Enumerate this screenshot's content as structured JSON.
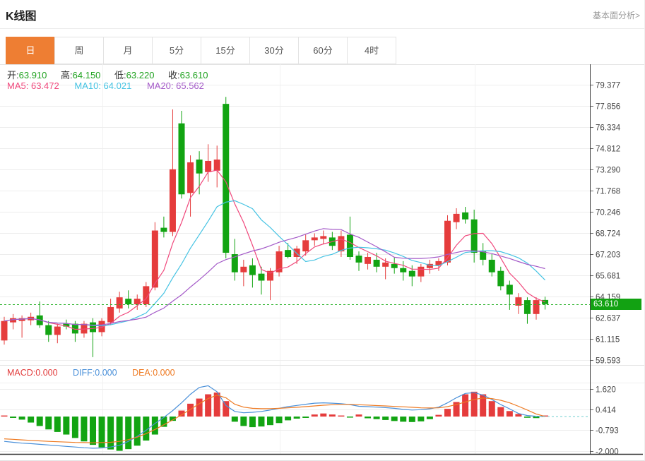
{
  "header": {
    "title": "K线图",
    "link": "基本面分析>"
  },
  "tabs": [
    "日",
    "周",
    "月",
    "5分",
    "15分",
    "30分",
    "60分",
    "4时"
  ],
  "active_tab": "日",
  "legend": {
    "ohlc": {
      "open_label": "开:",
      "open": "63.910",
      "high_label": "高:",
      "high": "64.150",
      "low_label": "低:",
      "low": "63.220",
      "close_label": "收:",
      "close": "63.610"
    },
    "ma": {
      "ma5_label": "MA5: ",
      "ma5": "63.472",
      "ma10_label": "MA10: ",
      "ma10": "64.021",
      "ma20_label": "MA20: ",
      "ma20": "65.562"
    },
    "macd": {
      "macd_label": "MACD:",
      "macd": "0.000",
      "diff_label": "DIFF:",
      "diff": "0.000",
      "dea_label": "DEA:",
      "dea": "0.000"
    }
  },
  "current_price": "63.610",
  "colors": {
    "up": "#e53c3c",
    "down": "#12a412",
    "accent_tab": "#ee7e33",
    "ma5": "#f0487c",
    "ma10": "#45c3e3",
    "ma20": "#a45ac8",
    "diff_line": "#4a90d9",
    "dea_line": "#ee7a22",
    "badge_bg": "#12a212",
    "price_line": "#2db32d"
  },
  "chart_data": [
    {
      "type": "candlestick",
      "timeframe": "日",
      "yticks": [
        79.377,
        77.856,
        76.334,
        74.812,
        73.29,
        71.768,
        70.246,
        68.724,
        67.203,
        65.681,
        64.159,
        62.637,
        61.115,
        59.593
      ],
      "ylim": [
        59.0,
        80.2
      ],
      "current_price": 63.61,
      "overlays": [
        {
          "name": "MA5",
          "window": 5,
          "color": "#f0487c"
        },
        {
          "name": "MA10",
          "window": 10,
          "color": "#45c3e3"
        },
        {
          "name": "MA20",
          "window": 20,
          "color": "#a45ac8"
        }
      ],
      "ohlc": [
        [
          61.0,
          62.7,
          60.7,
          62.4
        ],
        [
          62.3,
          62.9,
          61.8,
          62.6
        ],
        [
          62.4,
          62.8,
          61.2,
          62.6
        ],
        [
          62.45,
          63.0,
          62.1,
          62.7
        ],
        [
          62.8,
          63.8,
          61.9,
          62.1
        ],
        [
          62.1,
          62.4,
          60.9,
          61.4
        ],
        [
          61.4,
          62.2,
          60.8,
          62.0
        ],
        [
          62.2,
          62.5,
          61.8,
          62.0
        ],
        [
          62.2,
          62.4,
          60.9,
          61.5
        ],
        [
          61.5,
          62.4,
          61.2,
          62.2
        ],
        [
          62.3,
          62.6,
          59.8,
          61.6
        ],
        [
          61.6,
          62.6,
          61.3,
          62.4
        ],
        [
          62.3,
          64.0,
          62.1,
          63.4
        ],
        [
          63.3,
          64.5,
          63.0,
          64.1
        ],
        [
          64.0,
          64.6,
          63.3,
          63.6
        ],
        [
          63.6,
          64.3,
          63.2,
          64.0
        ],
        [
          63.6,
          65.2,
          63.4,
          64.9
        ],
        [
          64.8,
          69.5,
          64.6,
          68.9
        ],
        [
          69.1,
          69.9,
          68.4,
          68.8
        ],
        [
          68.8,
          77.6,
          68.5,
          73.3
        ],
        [
          76.6,
          77.5,
          71.2,
          71.5
        ],
        [
          71.6,
          74.3,
          69.9,
          73.8
        ],
        [
          74.0,
          74.6,
          71.5,
          73.0
        ],
        [
          73.1,
          75.1,
          72.4,
          73.9
        ],
        [
          73.2,
          75.0,
          72.0,
          74.0
        ],
        [
          78.0,
          78.5,
          66.9,
          67.3
        ],
        [
          67.2,
          68.3,
          65.3,
          65.9
        ],
        [
          65.9,
          66.8,
          64.9,
          66.3
        ],
        [
          66.4,
          66.9,
          64.8,
          65.7
        ],
        [
          65.8,
          66.3,
          64.3,
          65.3
        ],
        [
          65.3,
          66.2,
          63.9,
          66.0
        ],
        [
          65.9,
          67.8,
          65.6,
          67.4
        ],
        [
          67.5,
          68.0,
          66.9,
          67.0
        ],
        [
          67.0,
          67.8,
          66.5,
          67.6
        ],
        [
          67.4,
          68.6,
          67.1,
          68.2
        ],
        [
          68.2,
          68.7,
          67.8,
          68.4
        ],
        [
          68.3,
          68.9,
          67.9,
          68.5
        ],
        [
          68.4,
          68.8,
          67.5,
          67.8
        ],
        [
          67.4,
          68.9,
          67.0,
          68.5
        ],
        [
          68.6,
          69.9,
          66.8,
          67.0
        ],
        [
          67.1,
          67.4,
          66.0,
          66.6
        ],
        [
          66.5,
          67.3,
          66.1,
          67.0
        ],
        [
          66.8,
          67.3,
          65.9,
          66.3
        ],
        [
          66.3,
          66.9,
          65.4,
          66.6
        ],
        [
          66.5,
          67.0,
          65.8,
          66.2
        ],
        [
          66.2,
          66.7,
          65.3,
          65.9
        ],
        [
          66.0,
          66.4,
          64.9,
          65.6
        ],
        [
          65.6,
          66.5,
          65.2,
          66.3
        ],
        [
          66.2,
          66.8,
          65.8,
          66.5
        ],
        [
          66.4,
          66.9,
          66.0,
          66.7
        ],
        [
          66.6,
          70.0,
          66.4,
          69.6
        ],
        [
          69.5,
          70.5,
          69.0,
          70.1
        ],
        [
          70.2,
          70.6,
          69.4,
          69.7
        ],
        [
          69.7,
          70.4,
          66.6,
          67.3
        ],
        [
          67.4,
          68.0,
          66.4,
          66.8
        ],
        [
          66.8,
          67.2,
          65.6,
          65.9
        ],
        [
          66.0,
          66.3,
          64.6,
          64.9
        ],
        [
          65.0,
          65.3,
          63.2,
          64.3
        ],
        [
          63.5,
          64.4,
          62.9,
          64.1
        ],
        [
          63.9,
          64.1,
          62.2,
          62.9
        ],
        [
          62.9,
          64.1,
          62.5,
          63.9
        ],
        [
          63.91,
          64.15,
          63.22,
          63.61
        ]
      ],
      "up_color": "#e53c3c",
      "down_color": "#12a412"
    },
    {
      "type": "bar",
      "name": "MACD",
      "yticks": [
        1.62,
        0.414,
        -0.793,
        -2.0
      ],
      "histogram": [
        0.05,
        -0.08,
        -0.18,
        -0.35,
        -0.55,
        -0.75,
        -0.9,
        -1.05,
        -1.25,
        -1.45,
        -1.65,
        -1.8,
        -1.92,
        -2.0,
        -1.9,
        -1.7,
        -1.4,
        -1.05,
        -0.6,
        -0.25,
        0.35,
        0.75,
        1.05,
        1.3,
        1.4,
        0.9,
        -0.3,
        -0.55,
        -0.62,
        -0.58,
        -0.5,
        -0.38,
        -0.22,
        -0.12,
        -0.08,
        0.12,
        0.18,
        0.12,
        0.06,
        -0.06,
        0.12,
        -0.1,
        -0.15,
        -0.2,
        -0.26,
        -0.3,
        -0.32,
        -0.28,
        -0.15,
        0.1,
        0.45,
        0.85,
        1.3,
        1.45,
        1.3,
        0.9,
        0.55,
        0.32,
        0.15,
        -0.07,
        -0.09,
        0.0
      ],
      "series": [
        {
          "name": "DIFF",
          "color": "#4a90d9",
          "values": [
            -1.45,
            -1.5,
            -1.55,
            -1.58,
            -1.62,
            -1.66,
            -1.7,
            -1.74,
            -1.78,
            -1.82,
            -1.85,
            -1.83,
            -1.78,
            -1.68,
            -1.45,
            -1.15,
            -0.8,
            -0.4,
            -0.05,
            0.35,
            0.8,
            1.3,
            1.7,
            1.8,
            1.45,
            0.65,
            0.3,
            0.22,
            0.25,
            0.3,
            0.38,
            0.48,
            0.58,
            0.65,
            0.72,
            0.78,
            0.8,
            0.78,
            0.75,
            0.7,
            0.6,
            0.58,
            0.55,
            0.52,
            0.48,
            0.42,
            0.38,
            0.4,
            0.45,
            0.55,
            0.8,
            1.1,
            1.35,
            1.4,
            1.25,
            1.0,
            0.7,
            0.45,
            0.18,
            0.06,
            0.02,
            0.0
          ]
        },
        {
          "name": "DEA",
          "color": "#ee7a22",
          "values": [
            -1.3,
            -1.33,
            -1.36,
            -1.39,
            -1.42,
            -1.45,
            -1.47,
            -1.49,
            -1.51,
            -1.52,
            -1.53,
            -1.52,
            -1.5,
            -1.45,
            -1.35,
            -1.2,
            -1.0,
            -0.75,
            -0.48,
            -0.2,
            0.1,
            0.42,
            0.75,
            1.05,
            1.25,
            1.1,
            0.72,
            0.55,
            0.48,
            0.46,
            0.46,
            0.48,
            0.51,
            0.54,
            0.58,
            0.62,
            0.66,
            0.69,
            0.71,
            0.71,
            0.69,
            0.67,
            0.64,
            0.62,
            0.59,
            0.57,
            0.54,
            0.51,
            0.5,
            0.51,
            0.58,
            0.7,
            0.85,
            1.0,
            1.08,
            1.05,
            0.95,
            0.8,
            0.6,
            0.38,
            0.15,
            0.0
          ]
        }
      ],
      "positive_color": "#e53c3c",
      "negative_color": "#12a412"
    }
  ]
}
